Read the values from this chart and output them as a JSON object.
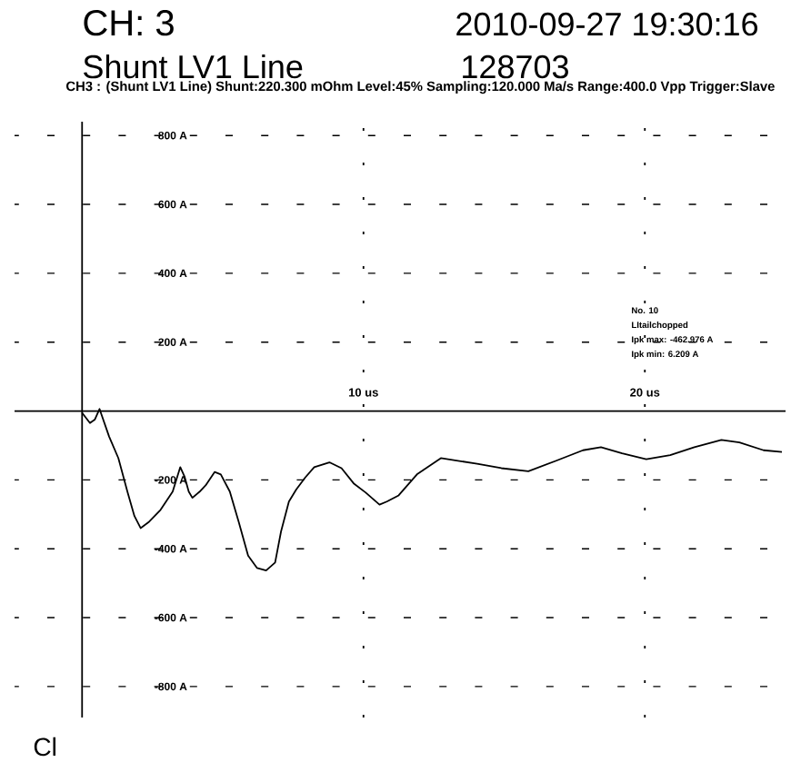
{
  "chart_data": {
    "type": "line",
    "title": "CH: 3",
    "subtitle": "Shunt LV1 Line",
    "annotations": [
      "2010-09-27 19:30:16",
      "128703",
      "CH3 : (Shunt LV1 Line) Shunt:220.300 mOhm Level:45% Sampling:120.000 Ma/s Range:400.0 Vpp Trigger:Slave",
      "No. 10",
      "LItailchopped",
      "Ipk max: -462.976 A",
      "Ipk min: 6.209 A",
      "Cl"
    ],
    "x": [
      0,
      0.28,
      0.45,
      0.62,
      0.96,
      1.29,
      1.61,
      1.86,
      2.08,
      2.36,
      2.79,
      3.22,
      3.49,
      3.64,
      3.79,
      3.92,
      4.18,
      4.39,
      4.71,
      4.93,
      5.25,
      5.57,
      5.9,
      6.22,
      6.54,
      6.86,
      7.07,
      7.35,
      7.61,
      7.93,
      8.25,
      8.79,
      9.22,
      9.65,
      10.08,
      10.57,
      10.83,
      11.25,
      11.9,
      12.75,
      14.04,
      14.9,
      15.86,
      16.83,
      17.8,
      18.44,
      19.19,
      20.05,
      20.9,
      21.76,
      22.72,
      23.36,
      24.22,
      24.87
    ],
    "values": [
      -5,
      -35,
      -25,
      6,
      -74,
      -137,
      -234,
      -305,
      -340,
      -323,
      -287,
      -234,
      -163,
      -190,
      -234,
      -252,
      -234,
      -216,
      -177,
      -184,
      -234,
      -323,
      -420,
      -456,
      -463,
      -440,
      -350,
      -263,
      -228,
      -193,
      -163,
      -149,
      -166,
      -210,
      -237,
      -272,
      -263,
      -245,
      -184,
      -137,
      -153,
      -166,
      -175,
      -145,
      -114,
      -105,
      -123,
      -140,
      -128,
      -105,
      -84,
      -91,
      -114,
      -119
    ],
    "color": "#000000",
    "xlim": [
      -2.4,
      25
    ],
    "ylim": [
      -890,
      840
    ],
    "xticks": [
      {
        "value": 10,
        "label": "10 us"
      },
      {
        "value": 20,
        "label": "20 us"
      }
    ],
    "yticks": [
      {
        "value": -800,
        "label": "-800 A"
      },
      {
        "value": -600,
        "label": "-600 A"
      },
      {
        "value": -400,
        "label": "-400 A"
      },
      {
        "value": -200,
        "label": "-200 A"
      },
      {
        "value": 200,
        "label": "200 A"
      },
      {
        "value": 400,
        "label": "400 A"
      },
      {
        "value": 600,
        "label": "600 A"
      },
      {
        "value": 800,
        "label": "800 A"
      }
    ],
    "grid": true
  }
}
